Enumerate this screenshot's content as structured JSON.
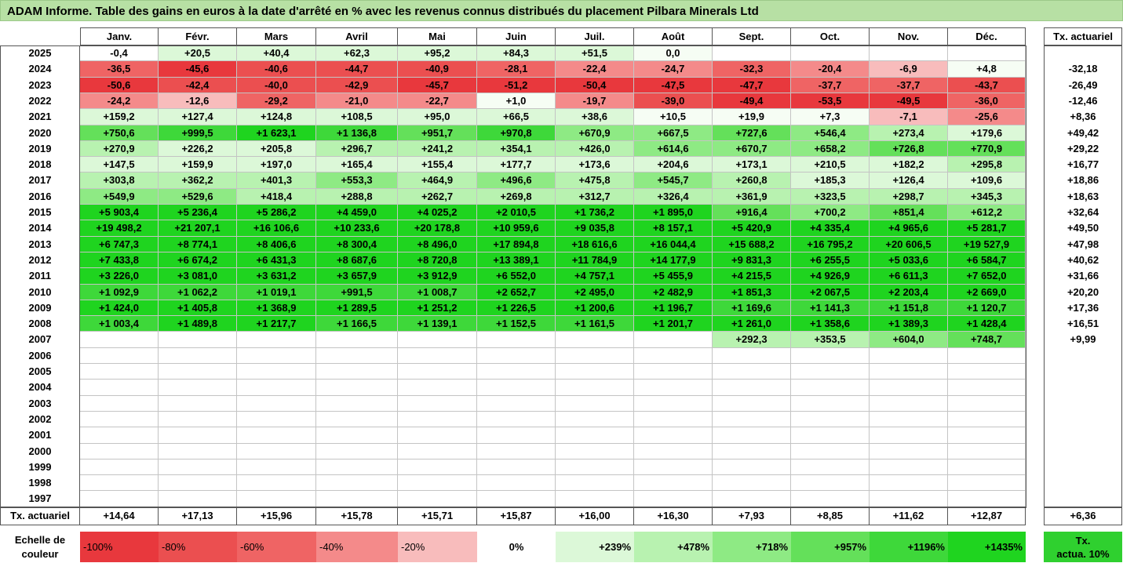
{
  "title": "ADAM Informe. Table des gains en euros à la date d'arrêté en % avec les revenus connus distribués du placement Pilbara Minerals Ltd",
  "months": [
    "Janv.",
    "Févr.",
    "Mars",
    "Avril",
    "Mai",
    "Juin",
    "Juil.",
    "Août",
    "Sept.",
    "Oct.",
    "Nov.",
    "Déc."
  ],
  "tx_header": "Tx. actuariel",
  "rows": [
    {
      "year": "2025",
      "values": [
        "-0,4",
        "+20,5",
        "+40,4",
        "+62,3",
        "+95,2",
        "+84,3",
        "+51,5",
        "0,0",
        "",
        "",
        "",
        ""
      ],
      "tx": ""
    },
    {
      "year": "2024",
      "values": [
        "-36,5",
        "-45,6",
        "-40,6",
        "-44,7",
        "-40,9",
        "-28,1",
        "-22,4",
        "-24,7",
        "-32,3",
        "-20,4",
        "-6,9",
        "+4,8"
      ],
      "tx": "-32,18"
    },
    {
      "year": "2023",
      "values": [
        "-50,6",
        "-42,4",
        "-40,0",
        "-42,9",
        "-45,7",
        "-51,2",
        "-50,4",
        "-47,5",
        "-47,7",
        "-37,7",
        "-37,7",
        "-43,7"
      ],
      "tx": "-26,49"
    },
    {
      "year": "2022",
      "values": [
        "-24,2",
        "-12,6",
        "-29,2",
        "-21,0",
        "-22,7",
        "+1,0",
        "-19,7",
        "-39,0",
        "-49,4",
        "-53,5",
        "-49,5",
        "-36,0"
      ],
      "tx": "-12,46"
    },
    {
      "year": "2021",
      "values": [
        "+159,2",
        "+127,4",
        "+124,8",
        "+108,5",
        "+95,0",
        "+66,5",
        "+38,6",
        "+10,5",
        "+19,9",
        "+7,3",
        "-7,1",
        "-25,6"
      ],
      "tx": "+8,36"
    },
    {
      "year": "2020",
      "values": [
        "+750,6",
        "+999,5",
        "+1 623,1",
        "+1 136,8",
        "+951,7",
        "+970,8",
        "+670,9",
        "+667,5",
        "+727,6",
        "+546,4",
        "+273,4",
        "+179,6"
      ],
      "tx": "+49,42"
    },
    {
      "year": "2019",
      "values": [
        "+270,9",
        "+226,2",
        "+205,8",
        "+296,7",
        "+241,2",
        "+354,1",
        "+426,0",
        "+614,6",
        "+670,7",
        "+658,2",
        "+726,8",
        "+770,9"
      ],
      "tx": "+29,22"
    },
    {
      "year": "2018",
      "values": [
        "+147,5",
        "+159,9",
        "+197,0",
        "+165,4",
        "+155,4",
        "+177,7",
        "+173,6",
        "+204,6",
        "+173,1",
        "+210,5",
        "+182,2",
        "+295,8"
      ],
      "tx": "+16,77"
    },
    {
      "year": "2017",
      "values": [
        "+303,8",
        "+362,2",
        "+401,3",
        "+553,3",
        "+464,9",
        "+496,6",
        "+475,8",
        "+545,7",
        "+260,8",
        "+185,3",
        "+126,4",
        "+109,6"
      ],
      "tx": "+18,86"
    },
    {
      "year": "2016",
      "values": [
        "+549,9",
        "+529,6",
        "+418,4",
        "+288,8",
        "+262,7",
        "+269,8",
        "+312,7",
        "+326,4",
        "+361,9",
        "+323,5",
        "+298,7",
        "+345,3"
      ],
      "tx": "+18,63"
    },
    {
      "year": "2015",
      "values": [
        "+5 903,4",
        "+5 236,4",
        "+5 286,2",
        "+4 459,0",
        "+4 025,2",
        "+2 010,5",
        "+1 736,2",
        "+1 895,0",
        "+916,4",
        "+700,2",
        "+851,4",
        "+612,2"
      ],
      "tx": "+32,64"
    },
    {
      "year": "2014",
      "values": [
        "+19 498,2",
        "+21 207,1",
        "+16 106,6",
        "+10 233,6",
        "+20 178,8",
        "+10 959,6",
        "+9 035,8",
        "+8 157,1",
        "+5 420,9",
        "+4 335,4",
        "+4 965,6",
        "+5 281,7"
      ],
      "tx": "+49,50"
    },
    {
      "year": "2013",
      "values": [
        "+6 747,3",
        "+8 774,1",
        "+8 406,6",
        "+8 300,4",
        "+8 496,0",
        "+17 894,8",
        "+18 616,6",
        "+16 044,4",
        "+15 688,2",
        "+16 795,2",
        "+20 606,5",
        "+19 527,9"
      ],
      "tx": "+47,98"
    },
    {
      "year": "2012",
      "values": [
        "+7 433,8",
        "+6 674,2",
        "+6 431,3",
        "+8 687,6",
        "+8 720,8",
        "+13 389,1",
        "+11 784,9",
        "+14 177,9",
        "+9 831,3",
        "+6 255,5",
        "+5 033,6",
        "+6 584,7"
      ],
      "tx": "+40,62"
    },
    {
      "year": "2011",
      "values": [
        "+3 226,0",
        "+3 081,0",
        "+3 631,2",
        "+3 657,9",
        "+3 912,9",
        "+6 552,0",
        "+4 757,1",
        "+5 455,9",
        "+4 215,5",
        "+4 926,9",
        "+6 611,3",
        "+7 652,0"
      ],
      "tx": "+31,66"
    },
    {
      "year": "2010",
      "values": [
        "+1 092,9",
        "+1 062,2",
        "+1 019,1",
        "+991,5",
        "+1 008,7",
        "+2 652,7",
        "+2 495,0",
        "+2 482,9",
        "+1 851,3",
        "+2 067,5",
        "+2 203,4",
        "+2 669,0"
      ],
      "tx": "+20,20"
    },
    {
      "year": "2009",
      "values": [
        "+1 424,0",
        "+1 405,8",
        "+1 368,9",
        "+1 289,5",
        "+1 251,2",
        "+1 226,5",
        "+1 200,6",
        "+1 196,7",
        "+1 169,6",
        "+1 141,3",
        "+1 151,8",
        "+1 120,7"
      ],
      "tx": "+17,36"
    },
    {
      "year": "2008",
      "values": [
        "+1 003,4",
        "+1 489,8",
        "+1 217,7",
        "+1 166,5",
        "+1 139,1",
        "+1 152,5",
        "+1 161,5",
        "+1 201,7",
        "+1 261,0",
        "+1 358,6",
        "+1 389,3",
        "+1 428,4"
      ],
      "tx": "+16,51"
    },
    {
      "year": "2007",
      "values": [
        "",
        "",
        "",
        "",
        "",
        "",
        "",
        "",
        "+292,3",
        "+353,5",
        "+604,0",
        "+748,7"
      ],
      "tx": "+9,99"
    },
    {
      "year": "2006",
      "values": [
        "",
        "",
        "",
        "",
        "",
        "",
        "",
        "",
        "",
        "",
        "",
        ""
      ],
      "tx": ""
    },
    {
      "year": "2005",
      "values": [
        "",
        "",
        "",
        "",
        "",
        "",
        "",
        "",
        "",
        "",
        "",
        ""
      ],
      "tx": ""
    },
    {
      "year": "2004",
      "values": [
        "",
        "",
        "",
        "",
        "",
        "",
        "",
        "",
        "",
        "",
        "",
        ""
      ],
      "tx": ""
    },
    {
      "year": "2003",
      "values": [
        "",
        "",
        "",
        "",
        "",
        "",
        "",
        "",
        "",
        "",
        "",
        ""
      ],
      "tx": ""
    },
    {
      "year": "2002",
      "values": [
        "",
        "",
        "",
        "",
        "",
        "",
        "",
        "",
        "",
        "",
        "",
        ""
      ],
      "tx": ""
    },
    {
      "year": "2001",
      "values": [
        "",
        "",
        "",
        "",
        "",
        "",
        "",
        "",
        "",
        "",
        "",
        ""
      ],
      "tx": ""
    },
    {
      "year": "2000",
      "values": [
        "",
        "",
        "",
        "",
        "",
        "",
        "",
        "",
        "",
        "",
        "",
        ""
      ],
      "tx": ""
    },
    {
      "year": "1999",
      "values": [
        "",
        "",
        "",
        "",
        "",
        "",
        "",
        "",
        "",
        "",
        "",
        ""
      ],
      "tx": ""
    },
    {
      "year": "1998",
      "values": [
        "",
        "",
        "",
        "",
        "",
        "",
        "",
        "",
        "",
        "",
        "",
        ""
      ],
      "tx": ""
    },
    {
      "year": "1997",
      "values": [
        "",
        "",
        "",
        "",
        "",
        "",
        "",
        "",
        "",
        "",
        "",
        ""
      ],
      "tx": ""
    }
  ],
  "footer": {
    "label": "Tx. actuariel",
    "values": [
      "+14,64",
      "+17,13",
      "+15,96",
      "+15,78",
      "+15,71",
      "+15,87",
      "+16,00",
      "+16,30",
      "+7,93",
      "+8,85",
      "+11,62",
      "+12,87"
    ],
    "tx": "+6,36"
  },
  "scale": {
    "label_line1": "Echelle de",
    "label_line2": "couleur",
    "items": [
      {
        "label": "-100%",
        "color": "#e8383d"
      },
      {
        "label": "-80%",
        "color": "#eb4f50"
      },
      {
        "label": "-60%",
        "color": "#ef6464"
      },
      {
        "label": "-40%",
        "color": "#f48a8a"
      },
      {
        "label": "-20%",
        "color": "#f8bcbc"
      },
      {
        "label": "0%",
        "color": "#ffffff"
      },
      {
        "label": "+239%",
        "color": "#dcf8d8"
      },
      {
        "label": "+478%",
        "color": "#b8f2b0"
      },
      {
        "label": "+718%",
        "color": "#8eea84"
      },
      {
        "label": "+957%",
        "color": "#64e05a"
      },
      {
        "label": "+1196%",
        "color": "#3ed83a"
      },
      {
        "label": "+1435%",
        "color": "#1fd41f"
      }
    ],
    "tx_line1": "Tx.",
    "tx_line2": "actua. 10%",
    "tx_color": "#2fd02f"
  }
}
